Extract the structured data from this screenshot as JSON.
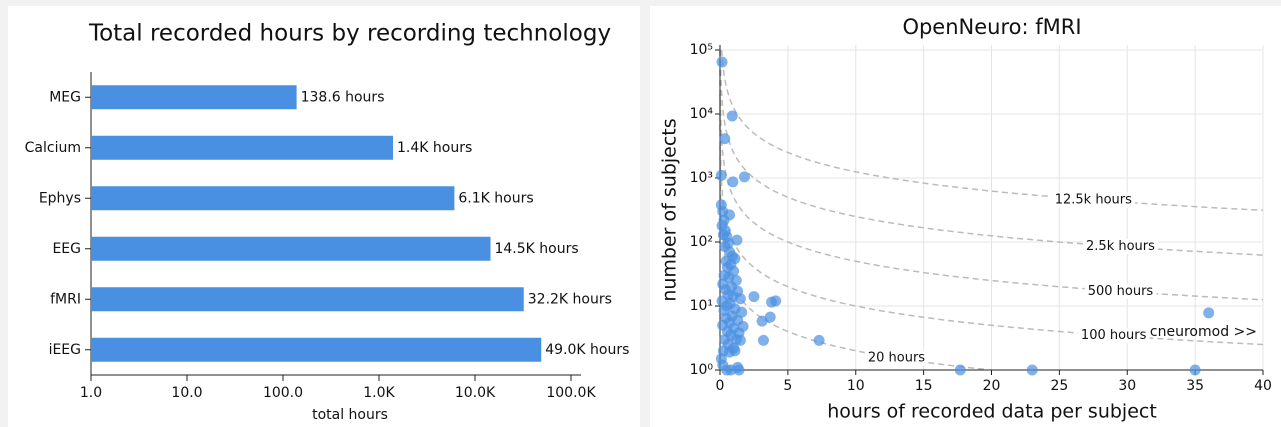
{
  "chart_data": [
    {
      "type": "bar",
      "orientation": "horizontal",
      "title": "Total recorded hours by recording technology",
      "categories": [
        "MEG",
        "Calcium",
        "Ephys",
        "EEG",
        "fMRI",
        "iEEG"
      ],
      "values": [
        138.6,
        1400,
        6100,
        14500,
        32200,
        49000
      ],
      "value_labels": [
        "138.6 hours",
        "1.4K hours",
        "6.1K hours",
        "14.5K hours",
        "32.2K hours",
        "49.0K hours"
      ],
      "color": "#4a90e2",
      "xscale": "log",
      "xlim": [
        1,
        100000
      ],
      "xticks": [
        {
          "value": 1,
          "label": "1.0"
        },
        {
          "value": 10,
          "label": "10.0"
        },
        {
          "value": 100,
          "label": "100.0"
        },
        {
          "value": 1000,
          "label": "1.0K"
        },
        {
          "value": 10000,
          "label": "10.0K"
        },
        {
          "value": 100000,
          "label": "100.0K"
        }
      ],
      "x_label": "total hours",
      "grid": false
    },
    {
      "type": "scatter",
      "title": "OpenNeuro: fMRI",
      "x_label": "hours of recorded data per subject",
      "y_label": "number of subjects",
      "color": "#4a90e2",
      "yscale": "log",
      "xlim": [
        0,
        40
      ],
      "ylim": [
        1,
        100000
      ],
      "xticks": [
        0,
        5,
        10,
        15,
        20,
        25,
        30,
        35,
        40
      ],
      "yticks": [
        {
          "value": 1,
          "label": "10⁰"
        },
        {
          "value": 10,
          "label": "10¹"
        },
        {
          "value": 100,
          "label": "10²"
        },
        {
          "value": 1000,
          "label": "10³"
        },
        {
          "value": 10000,
          "label": "10⁴"
        },
        {
          "value": 100000,
          "label": "10⁵"
        }
      ],
      "grid": true,
      "x": [
        0.15,
        0.9,
        0.35,
        1.8,
        0.95,
        0.1,
        0.7,
        1.25,
        2.5,
        3.8,
        4.1,
        3.7,
        3.1,
        3.2,
        7.3,
        17.7,
        23,
        35,
        36,
        0.1,
        0.2,
        0.3,
        0.15,
        0.4,
        0.25,
        0.5,
        0.6,
        0.35,
        0.7,
        0.9,
        1.1,
        0.45,
        0.8,
        0.55,
        1.0,
        0.3,
        0.65,
        1.2,
        0.2,
        0.85,
        0.4,
        1.3,
        0.6,
        0.95,
        0.15,
        1.5,
        0.75,
        0.5,
        1.1,
        0.3,
        1.6,
        0.9,
        0.45,
        1.3,
        0.7,
        0.2,
        1.0,
        1.7,
        0.55,
        1.4,
        0.8,
        0.35,
        1.2,
        1.5,
        0.6,
        1.0,
        0.25,
        0.7,
        1.1,
        0.1,
        0.5,
        0.8,
        1.4,
        0.2,
        1.3
      ],
      "y": [
        65000,
        9300,
        4100,
        1040,
        870,
        1100,
        265,
        107,
        14,
        11.5,
        12,
        6.7,
        5.8,
        2.9,
        2.9,
        1,
        1,
        1,
        7.8,
        380,
        300,
        220,
        180,
        150,
        130,
        120,
        95,
        85,
        70,
        60,
        55,
        50,
        45,
        40,
        35,
        30,
        28,
        25,
        22,
        20,
        18,
        17,
        15,
        14,
        12,
        13,
        11,
        10,
        9,
        8.5,
        8,
        7,
        6.5,
        6,
        5.5,
        5,
        4.5,
        4.8,
        4,
        3.8,
        3.5,
        3,
        3,
        2.9,
        2.5,
        2.2,
        2,
        1.9,
        2,
        1.5,
        1,
        1,
        1,
        1.2,
        1.1
      ],
      "iso_lines": [
        {
          "value": 12500,
          "label": "12.5k hours"
        },
        {
          "value": 2500,
          "label": "2.5k hours"
        },
        {
          "value": 500,
          "label": "500 hours"
        },
        {
          "value": 100,
          "label": "100 hours"
        },
        {
          "value": 20,
          "label": "20 hours"
        }
      ],
      "annotation": "cneuromod >>"
    }
  ]
}
